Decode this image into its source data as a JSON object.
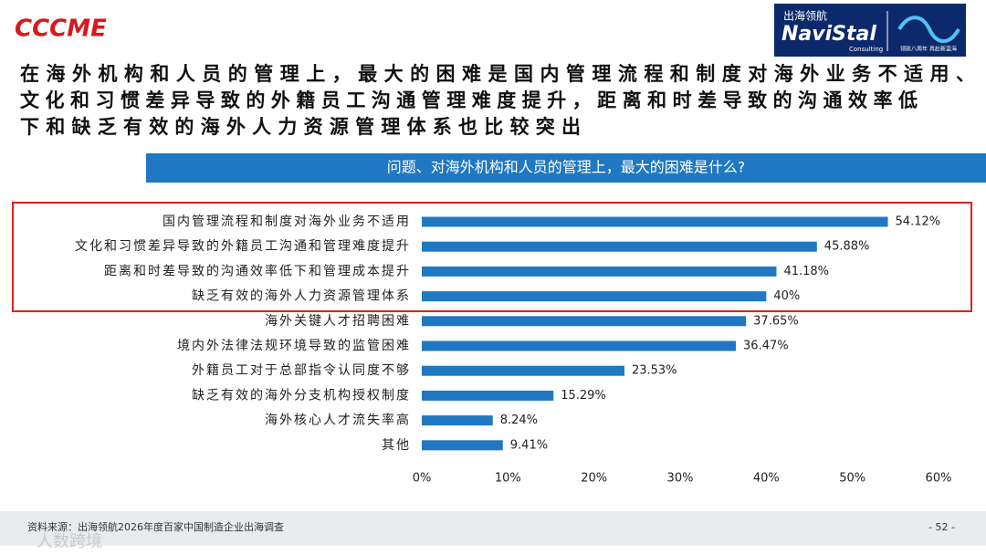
{
  "header": {
    "logo_left": "CCCME",
    "logo_right_cn": "出海领航",
    "logo_right_brand": "NaviStal",
    "logo_right_sub": "Consulting",
    "logo_right_slogan": "领航八周年 再赴新蓝海"
  },
  "headline": [
    "在海外机构和人员的管理上，最大的困难是国内管理流程和制度对海外业务不适用、",
    "文化和习惯差异导致的外籍员工沟通管理难度提升，距离和时差导致的沟通效率低",
    "下和缺乏有效的海外人力资源管理体系也比较突出"
  ],
  "chart_data": {
    "type": "hbar",
    "title": "问题、对海外机构和人员的管理上，最大的困难是什么?",
    "categories": [
      "国内管理流程和制度对海外业务不适用",
      "文化和习惯差异导致的外籍员工沟通和管理难度提升",
      "距离和时差导致的沟通效率低下和管理成本提升",
      "缺乏有效的海外人力资源管理体系",
      "海外关键人才招聘困难",
      "境内外法律法规环境导致的监管困难",
      "外籍员工对于总部指令认同度不够",
      "缺乏有效的海外分支机构授权制度",
      "海外核心人才流失率高",
      "其他"
    ],
    "values": [
      54.12,
      45.88,
      41.18,
      40,
      37.65,
      36.47,
      23.53,
      15.29,
      8.24,
      9.41
    ],
    "value_labels": [
      "54.12%",
      "45.88%",
      "41.18%",
      "40%",
      "37.65%",
      "36.47%",
      "23.53%",
      "15.29%",
      "8.24%",
      "9.41%"
    ],
    "color": "#1f78c1",
    "xlim": [
      0,
      60
    ],
    "xticks": [
      {
        "value": 0,
        "label": "0%"
      },
      {
        "value": 10,
        "label": "10%"
      },
      {
        "value": 20,
        "label": "20%"
      },
      {
        "value": 30,
        "label": "30%"
      },
      {
        "value": 40,
        "label": "40%"
      },
      {
        "value": 50,
        "label": "50%"
      },
      {
        "value": 60,
        "label": "60%"
      }
    ]
  },
  "footer": {
    "source": "资料来源：出海领航2026年度百家中国制造企业出海调查",
    "page": "- 52 -",
    "watermark": "人数跨境"
  }
}
